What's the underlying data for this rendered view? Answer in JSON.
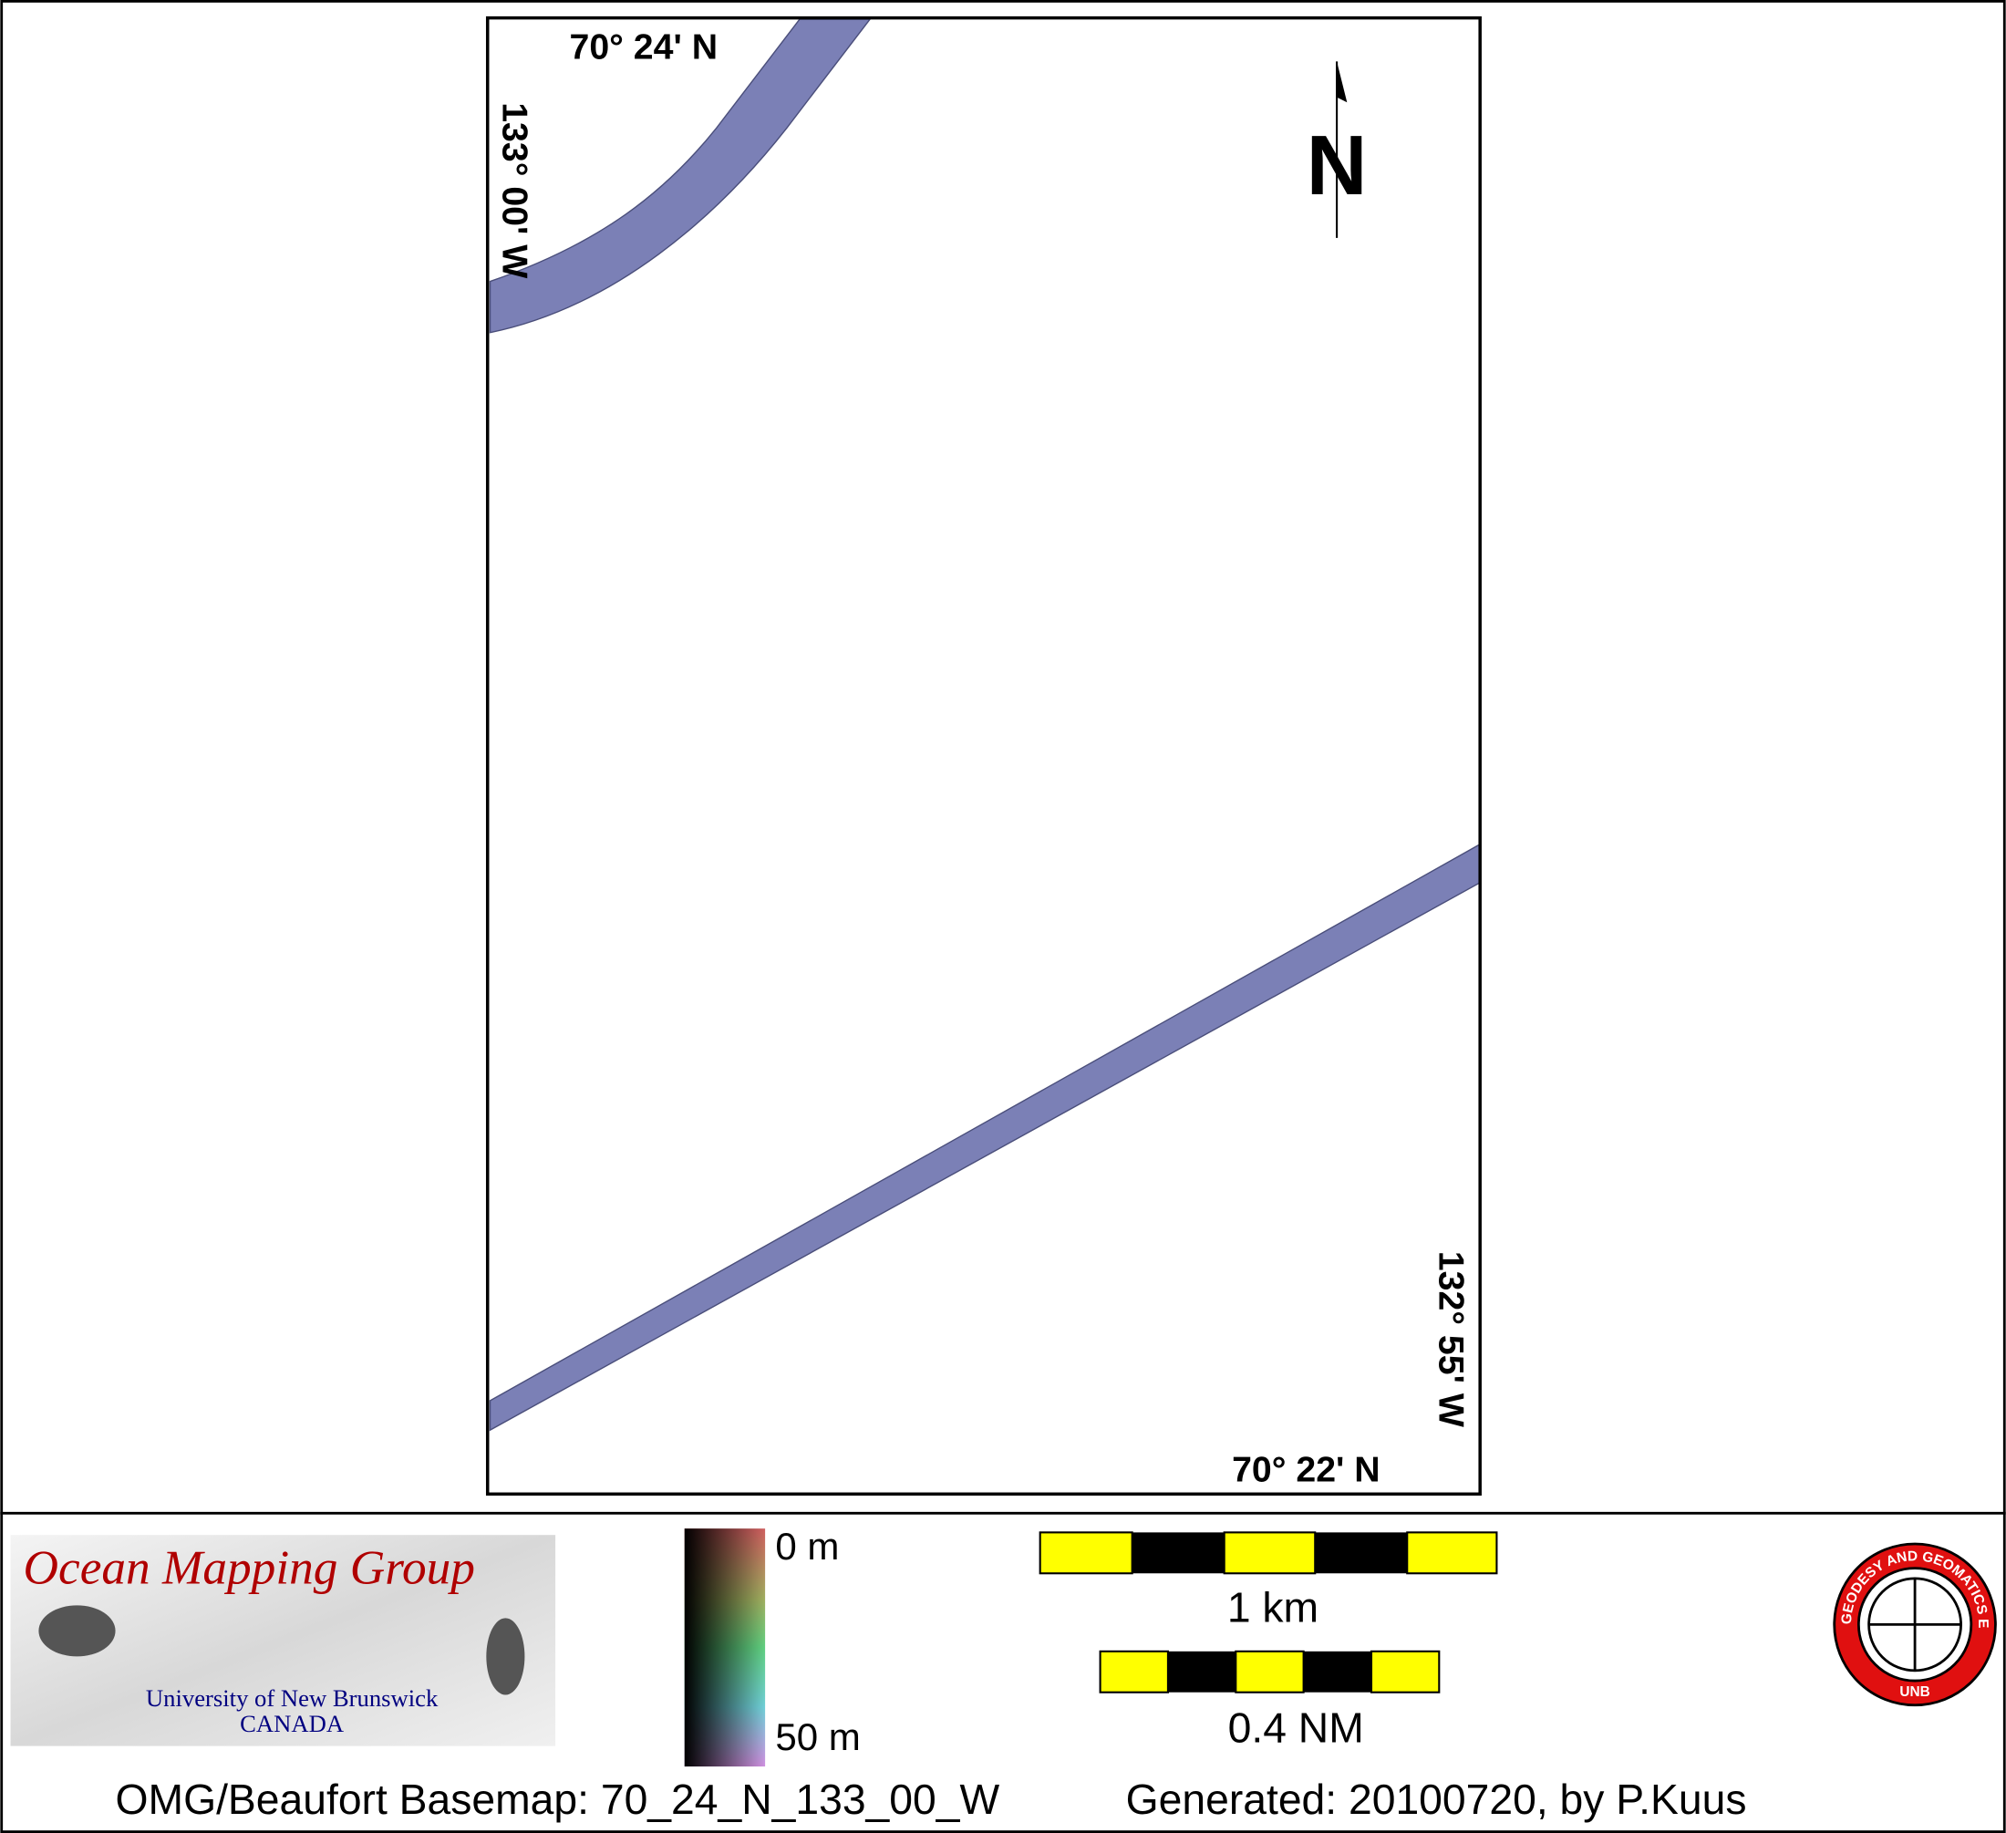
{
  "map": {
    "corner_labels": {
      "top_lat": "70° 24' N",
      "left_lon": "133° 00' W",
      "right_lon": "132° 55' W",
      "bottom_lat": "70° 22' N"
    },
    "north_arrow": "N",
    "logo": {
      "title": "Ocean Mapping Group",
      "university": "University of New Brunswick",
      "country": "CANADA"
    },
    "colorbar": {
      "top_label": "0 m",
      "bottom_label": "50 m"
    },
    "scale_bars": [
      "1 km",
      "0.4 NM"
    ],
    "unb_logo": {
      "ring_text": "GEODESY AND GEOMATICS ENGINEERING",
      "bottom_text": "UNB"
    },
    "footer": {
      "basemap": "OMG/Beaufort Basemap: 70_24_N_133_00_W",
      "generated": "Generated: 20100720, by P.Kuus"
    }
  }
}
